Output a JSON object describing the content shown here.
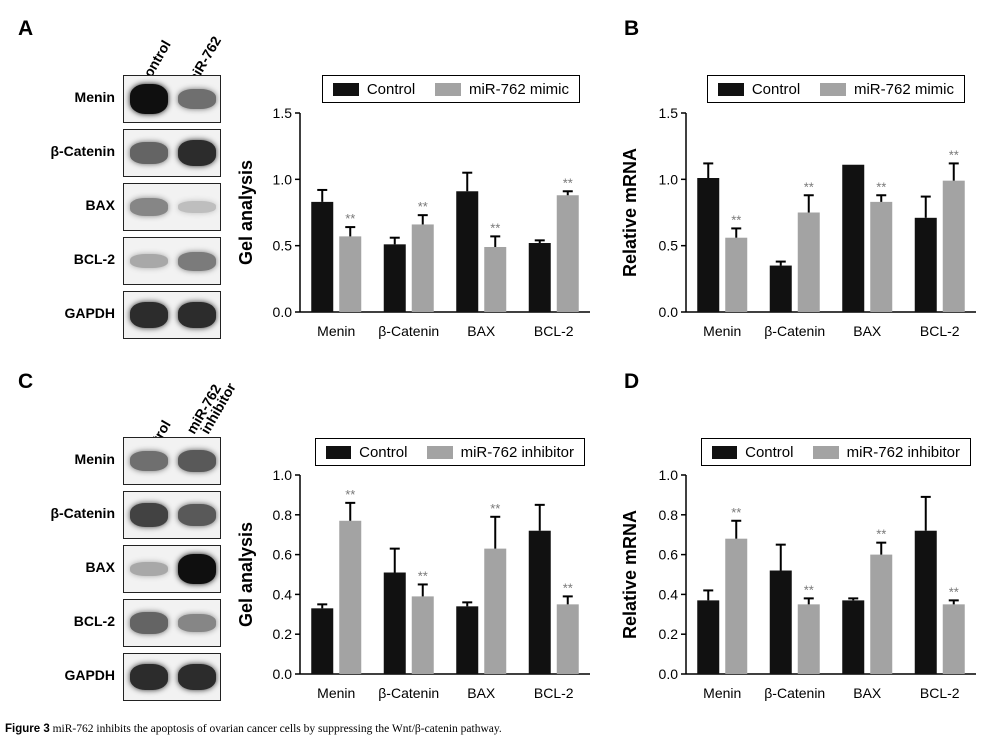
{
  "panels": [
    {
      "letter": "A",
      "lanes": [
        "Control",
        "miR-762"
      ],
      "blots": [
        {
          "label": "Menin",
          "bands": [
            0.98,
            0.55
          ]
        },
        {
          "label": "β-Catenin",
          "bands": [
            0.6,
            0.85
          ]
        },
        {
          "label": "BAX",
          "bands": [
            0.45,
            0.2
          ]
        },
        {
          "label": "BCL-2",
          "bands": [
            0.3,
            0.5
          ]
        },
        {
          "label": "GAPDH",
          "bands": [
            0.85,
            0.85
          ]
        }
      ]
    },
    {
      "letter": "B"
    },
    {
      "letter": "C",
      "lanes": [
        "Control",
        "miR-762\ninhibitor"
      ],
      "blots": [
        {
          "label": "Menin",
          "bands": [
            0.55,
            0.65
          ]
        },
        {
          "label": "β-Catenin",
          "bands": [
            0.75,
            0.65
          ]
        },
        {
          "label": "BAX",
          "bands": [
            0.3,
            0.98
          ]
        },
        {
          "label": "BCL-2",
          "bands": [
            0.6,
            0.45
          ]
        },
        {
          "label": "GAPDH",
          "bands": [
            0.85,
            0.85
          ]
        }
      ]
    },
    {
      "letter": "D"
    }
  ],
  "chart_data": [
    {
      "panel": "A",
      "type": "bar",
      "ylabel": "Gel analysis",
      "ylim": [
        0,
        1.5
      ],
      "yticks": [
        "0.0",
        "0.5",
        "1.0",
        "1.5"
      ],
      "categories": [
        "Menin",
        "β-Catenin",
        "BAX",
        "BCL-2"
      ],
      "series": [
        {
          "name": "Control",
          "color": "#111111",
          "values": [
            0.83,
            0.51,
            0.91,
            0.52
          ],
          "errors": [
            0.09,
            0.05,
            0.14,
            0.02
          ]
        },
        {
          "name": "miR-762 mimic",
          "color": "#a3a3a3",
          "values": [
            0.57,
            0.66,
            0.49,
            0.88
          ],
          "errors": [
            0.07,
            0.07,
            0.08,
            0.03
          ]
        }
      ],
      "significance": {
        "series": 1,
        "label": "**"
      }
    },
    {
      "panel": "B",
      "type": "bar",
      "ylabel": "Relative mRNA",
      "ylim": [
        0,
        1.5
      ],
      "yticks": [
        "0.0",
        "0.5",
        "1.0",
        "1.5"
      ],
      "categories": [
        "Menin",
        "β-Catenin",
        "BAX",
        "BCL-2"
      ],
      "series": [
        {
          "name": "Control",
          "color": "#111111",
          "values": [
            1.01,
            0.35,
            1.11,
            0.71
          ],
          "errors": [
            0.11,
            0.03,
            0.0,
            0.16
          ]
        },
        {
          "name": "miR-762 mimic",
          "color": "#a3a3a3",
          "values": [
            0.56,
            0.75,
            0.83,
            0.99
          ],
          "errors": [
            0.07,
            0.13,
            0.05,
            0.13
          ]
        }
      ],
      "significance": {
        "series": 1,
        "label": "**"
      }
    },
    {
      "panel": "C",
      "type": "bar",
      "ylabel": "Gel analysis",
      "ylim": [
        0,
        1.0
      ],
      "yticks": [
        "0.0",
        "0.2",
        "0.4",
        "0.6",
        "0.8",
        "1.0"
      ],
      "categories": [
        "Menin",
        "β-Catenin",
        "BAX",
        "BCL-2"
      ],
      "series": [
        {
          "name": "Control",
          "color": "#111111",
          "values": [
            0.33,
            0.51,
            0.34,
            0.72
          ],
          "errors": [
            0.02,
            0.12,
            0.02,
            0.13
          ]
        },
        {
          "name": "miR-762 inhibitor",
          "color": "#a3a3a3",
          "values": [
            0.77,
            0.39,
            0.63,
            0.35
          ],
          "errors": [
            0.09,
            0.06,
            0.16,
            0.04
          ]
        }
      ],
      "significance": {
        "series": 1,
        "label": "**"
      }
    },
    {
      "panel": "D",
      "type": "bar",
      "ylabel": "Relative mRNA",
      "ylim": [
        0,
        1.0
      ],
      "yticks": [
        "0.0",
        "0.2",
        "0.4",
        "0.6",
        "0.8",
        "1.0"
      ],
      "categories": [
        "Menin",
        "β-Catenin",
        "BAX",
        "BCL-2"
      ],
      "series": [
        {
          "name": "Control",
          "color": "#111111",
          "values": [
            0.37,
            0.52,
            0.37,
            0.72
          ],
          "errors": [
            0.05,
            0.13,
            0.01,
            0.17
          ]
        },
        {
          "name": "miR-762 inhibitor",
          "color": "#a3a3a3",
          "values": [
            0.68,
            0.35,
            0.6,
            0.35
          ],
          "errors": [
            0.09,
            0.03,
            0.06,
            0.02
          ]
        }
      ],
      "significance": {
        "series": 1,
        "label": "**"
      }
    }
  ],
  "caption": {
    "label": "Figure 3",
    "text": " miR-762 inhibits the apoptosis of ovarian cancer cells by suppressing the Wnt/β-catenin pathway."
  }
}
